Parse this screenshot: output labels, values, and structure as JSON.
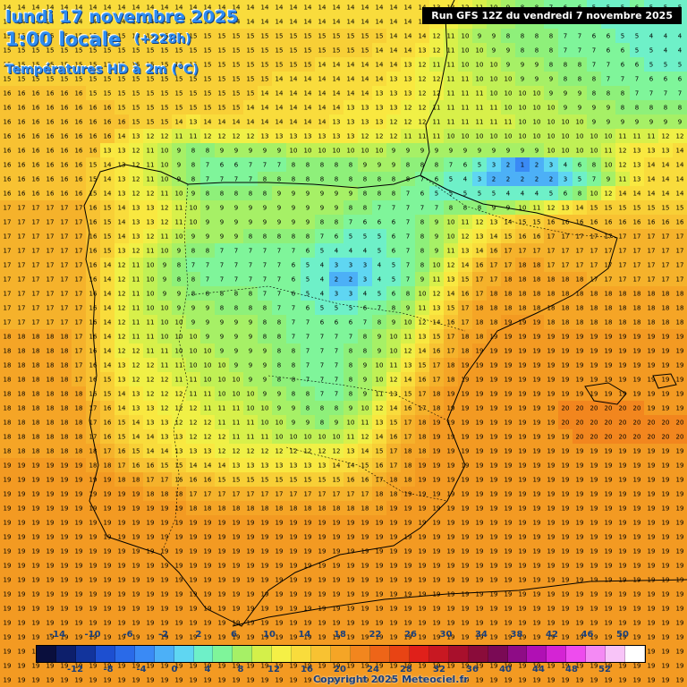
{
  "header": {
    "date": "lundi 17 novembre 2025",
    "time": "1:00 locale",
    "offset": "(+228h)",
    "variable": "Températures HD à 2m (°C)"
  },
  "run_info": "Run GFS 12Z du vendredi 7 novembre 2025",
  "credit": "Copyright 2025 Meteociel.fr",
  "legend": {
    "labels_top": [
      "-14",
      "-10",
      "-6",
      "-2",
      "2",
      "6",
      "10",
      "14",
      "18",
      "22",
      "26",
      "30",
      "34",
      "38",
      "42",
      "46",
      "50"
    ],
    "labels_bottom": [
      "-12",
      "-8",
      "-4",
      "0",
      "4",
      "8",
      "12",
      "16",
      "20",
      "24",
      "28",
      "32",
      "36",
      "40",
      "44",
      "48",
      "52"
    ],
    "colors": [
      "#0a0f3d",
      "#0d1f6b",
      "#12349c",
      "#1d4fd0",
      "#2a6ae8",
      "#3a8af5",
      "#4cb0f7",
      "#5fd6f2",
      "#6ef0c8",
      "#7ff59a",
      "#a6f066",
      "#d4f04a",
      "#f5f046",
      "#f9dc3c",
      "#f8c232",
      "#f5a526",
      "#f2861e",
      "#ee6518",
      "#e84414",
      "#e0201a",
      "#c81822",
      "#a8102c",
      "#8a0c3a",
      "#7a0a55",
      "#8e0c86",
      "#b010b4",
      "#d424d4",
      "#ee4cee",
      "#f48af4",
      "#f8c4f8",
      "#ffffff"
    ]
  },
  "map_grid": {
    "rows": [
      "14 14 14 14 14 14 14 14 14 14 14 14 14 14 14 14 14 14 14 14 14 14 14 14 14 14 14 14 14 14 13 13 12 11 10 9 8 8 7 6 6 5 5 5 6 5 5 5",
      "14 14 14 14 14 14 14 14 14 14 14 14 14 14 14 14 14 14 14 14 14 14 14 14 14 14 14 14 14 14 13 12 11 10 9 9 8 8 7 7 6 6 5 5 5 5 5 5",
      "15 15 15 15 15 15 15 15 15 15 15 15 15 15 15 15 15 15 15 15 15 15 15 15 15 15 15 14 14 14 12 11 10 9 9 8 8 8 8 7 7 6 6 5 5 4 4 4",
      "15 15 15 15 15 15 15 15 15 15 15 15 15 15 15 15 15 15 15 15 15 15 15 15 15 15 14 14 14 13 12 11 10 10 9 9 8 8 8 7 7 7 6 6 5 5 4 4",
      "15 15 15 15 15 15 15 15 15 15 15 15 15 15 15 15 15 15 15 15 15 15 14 14 14 14 14 14 13 12 11 11 10 10 10 9 9 9 8 8 8 7 7 6 6 5 5 5",
      "15 15 15 15 15 15 15 15 15 15 15 15 15 15 15 15 15 15 15 14 14 14 14 14 14 14 14 13 13 12 12 11 11 10 10 10 9 9 9 8 8 8 7 7 7 6 6 6",
      "16 16 16 16 16 16 15 15 15 15 15 15 15 15 15 15 15 15 14 14 14 14 14 14 14 14 13 13 13 12 12 11 11 11 10 10 10 10 9 9 9 8 8 8 7 7 7 7",
      "16 16 16 16 16 16 16 16 15 15 15 15 15 15 15 15 15 14 14 14 14 14 14 14 13 13 13 13 12 12 11 11 11 11 11 10 10 10 10 9 9 9 9 8 8 8 8 8",
      "16 16 16 16 16 16 16 16 16 15 15 15 14 13 14 14 14 14 14 14 14 14 14 13 13 13 13 12 12 12 11 11 11 11 11 11 10 10 10 10 10 9 9 9 9 9 9 9",
      "16 16 16 16 16 16 16 16 14 13 12 12 11 11 12 12 12 12 13 13 13 13 13 13 13 12 12 12 11 11 11 10 10 10 10 10 10 10 10 10 10 10 10 11 11 11 12 12",
      "16 16 16 16 16 16 16 13 13 12 11 10 9 8 8 9 9 9 9 9 10 10 10 10 10 10 10 9 9 9 9 9 9 9 9 9 9 9 10 10 10 10 11 12 13 13 13 14",
      "16 16 16 16 16 16 15 14 13 12 11 10 9 8 7 6 6 7 7 7 8 8 8 8 8 9 9 9 8 8 8 7 6 5 3 2 1 2 3 4 6 8 10 12 13 14 14 14",
      "16 16 16 16 16 16 15 14 13 12 11 10 9 8 7 7 7 7 8 8 8 8 8 8 8 8 8 8 8 7 6 5 4 3 2 2 2 2 2 3 5 7 9 11 13 14 14 14",
      "16 16 16 16 16 16 15 14 13 12 12 11 10 9 8 8 8 8 8 9 9 9 9 9 9 8 8 8 7 6 5 5 5 5 5 4 4 4 5 6 8 10 12 14 14 14 14 14",
      "17 17 17 17 17 17 16 15 14 13 13 12 11 10 9 9 9 9 9 9 9 9 9 9 8 8 7 7 7 7 7 8 8 8 9 9 10 11 12 13 14 15 15 15 15 15 15 15",
      "17 17 17 17 17 17 16 15 14 13 13 12 11 10 9 9 9 9 9 9 9 9 8 8 7 6 6 6 7 8 9 10 11 12 13 14 15 15 16 16 16 16 16 16 16 16 16 16",
      "17 17 17 17 17 17 16 15 14 13 12 11 10 9 9 9 9 8 8 8 8 8 7 6 5 5 5 6 7 8 9 10 12 13 14 15 16 16 17 17 17 17 17 17 17 17 17 17",
      "17 17 17 17 17 17 16 15 13 12 11 10 9 8 8 7 7 7 7 7 7 6 5 4 4 4 5 6 7 8 9 11 13 14 16 17 17 17 17 17 17 17 17 17 17 17 17 17",
      "17 17 17 17 17 17 16 14 12 11 10 9 8 7 7 7 7 7 7 7 6 5 4 3 3 3 4 5 7 8 10 12 14 16 17 17 18 18 17 17 17 17 17 17 17 17 17 17",
      "17 17 17 17 17 17 16 14 12 11 10 9 8 8 7 7 7 7 7 7 6 5 4 2 2 3 4 5 7 9 11 13 15 17 17 18 18 18 18 18 18 17 17 17 17 17 17 17",
      "17 17 17 17 17 17 16 14 12 11 10 9 9 8 8 8 8 8 7 7 6 5 4 3 3 4 5 6 8 10 12 14 16 17 18 18 18 18 18 18 18 18 18 18 18 18 18 18",
      "17 17 17 17 17 17 16 14 12 11 10 10 9 9 9 8 8 8 8 7 7 6 5 5 5 6 7 8 9 11 13 15 17 18 18 18 18 18 18 18 18 18 18 18 18 18 18 18",
      "17 17 17 17 17 17 16 14 12 11 11 10 10 9 9 9 9 9 8 8 7 7 6 6 6 7 8 9 10 12 14 16 17 18 18 19 19 19 18 18 18 18 18 18 18 18 18 18",
      "18 18 18 18 18 17 16 14 12 11 11 10 10 10 9 9 9 9 8 8 7 7 7 7 7 8 9 10 11 13 15 17 18 18 19 19 19 19 19 19 19 19 19 19 19 19 19 19",
      "18 18 18 18 18 17 16 14 12 12 11 11 10 10 10 9 9 9 9 8 8 7 7 7 8 8 9 10 12 14 16 17 18 19 19 19 19 19 19 19 19 19 19 19 19 19 19 19",
      "18 18 18 18 18 17 16 14 13 12 12 11 11 10 10 10 9 9 9 8 8 7 7 7 8 9 10 11 13 15 17 18 19 19 19 19 19 19 19 19 19 19 19 19 19 19 19 19",
      "18 18 18 18 18 17 16 15 13 12 12 12 11 11 10 10 10 9 9 8 8 7 7 7 8 9 10 12 14 16 17 18 19 19 19 19 19 19 19 19 19 19 19 19 19 19 19 19",
      "18 18 18 18 18 18 16 15 14 13 12 12 12 11 11 10 10 10 9 9 8 8 7 7 8 9 11 13 15 17 18 19 19 19 19 19 19 19 19 19 19 19 19 19 19 19 19 19",
      "18 18 18 18 18 18 17 16 14 13 13 12 12 12 11 11 11 10 10 9 9 8 8 8 9 10 12 14 16 17 18 19 19 19 19 19 19 19 19 20 20 20 20 20 20 19 19 19",
      "18 18 18 18 18 18 17 16 15 14 13 13 12 12 12 11 11 11 10 10 9 9 8 9 10 11 13 15 17 18 19 19 19 19 19 19 19 19 19 20 20 20 20 20 20 20 20 20",
      "18 18 18 18 18 18 17 16 15 14 14 13 13 12 12 12 11 11 11 10 10 10 10 10 11 12 14 16 17 18 19 19 19 19 19 19 19 19 19 19 20 20 20 20 20 20 20 20",
      "18 18 18 18 18 18 18 17 16 15 14 14 13 13 13 12 12 12 12 12 12 12 12 12 13 14 15 17 18 18 19 19 19 19 19 19 19 19 19 19 19 19 19 19 19 19 19 19",
      "19 19 19 19 19 19 18 18 17 16 16 15 15 14 14 14 13 13 13 13 13 13 13 14 14 15 16 17 18 19 19 19 19 19 19 19 19 19 19 19 19 19 19 19 19 19 19 19",
      "19 19 19 19 19 19 19 19 18 18 17 17 16 16 16 15 15 15 15 15 15 15 15 15 16 16 17 18 18 19 19 19 19 19 19 19 19 19 19 19 19 19 19 19 19 19 19 19",
      "19 19 19 19 19 19 19 19 19 19 18 18 18 17 17 17 17 17 17 17 17 17 17 17 17 17 18 18 19 19 19 19 19 19 19 19 19 19 19 19 19 19 19 19 19 19 19 19",
      "19 19 19 19 19 19 19 19 19 19 19 19 19 18 18 18 18 18 18 18 18 18 18 18 18 18 18 19 19 19 19 19 19 19 19 19 19 19 19 19 19 19 19 19 19 19 19 19",
      "19 19 19 19 19 19 19 19 19 19 19 19 19 19 19 19 19 19 19 19 19 19 19 19 19 19 19 19 19 19 19 19 19 19 19 19 19 19 19 19 19 19 19 19 19 19 19 19",
      "19 19 19 19 19 19 19 19 19 19 19 19 19 19 19 19 19 19 19 19 19 19 19 19 19 19 19 19 19 19 19 19 19 19 19 19 19 19 19 19 19 19 19 19 19 19 19 19",
      "19 19 19 19 19 19 19 19 19 19 19 19 19 19 19 19 19 19 19 19 19 19 19 19 19 19 19 19 19 19 19 19 19 19 19 19 19 19 19 19 19 19 19 19 19 19 19 19",
      "19 19 19 19 19 19 19 19 19 19 19 19 19 19 19 19 19 19 19 19 19 19 19 19 19 19 19 19 19 19 19 19 19 19 19 19 19 19 19 19 19 19 19 19 19 19 19 19",
      "19 19 19 19 19 19 19 19 19 19 19 19 19 19 19 19 19 19 19 19 19 19 19 19 19 19 19 19 19 19 19 19 19 19 19 19 19 19 19 19 19 19 19 19 19 19 19 19",
      "19 19 19 19 19 19 19 19 19 19 19 19 19 19 19 19 19 19 19 19 19 19 19 19 19 19 19 19 19 19 19 19 19 19 19 19 19 19 19 19 19 19 19 19 19 19 19 19",
      "19 19 19 19 19 19 19 19 19 19 19 19 19 19 19 19 19 19 19 19 19 19 19 19 19 19 19 19 19 19 19 19 19 19 19 19 19 19 19 19 19 19 19 19 19 19 19 19",
      "19 19 19 19 19 19 19 19 19 19 19 19 19 19 19 19 19 19 19 19 19 19 19 19 19 19 19 19 19 19 19 19 19 19 19 19 19 19 19 19 19 19 19 19 19 19 19 19",
      "19 19 19 19 19 19 19 19 19 19 19 19 19 19 19 19 19 19 19 19 19 19 19 19 19 19 19 19 19 19 19 19 19 19 19 19 19 19 19 19 19 19 19 19 19 19 19 19",
      "19 19 19 19 19 19 19 19 19 19 19 19 19 19 19 19 19 19 19 19 19 19 19 19 19 19 19 19 19 19 19 19 19 19 19 19 19 19 19 19 19 19 19 19 19 19 19 19",
      "19 19 19 19 19 19 19 19 19 19 19 19 19 19 19 19 19 19 19 19 19 19 19 19 19 19 19 19 19 19 19 19 19 19 19 19 19 19 19 19 19 19 19 19 19 19 19 19",
      "19 19 19 19 19 19 19 19 19 19 19 19 19 19 19 19 19 19 19 19 19 19 19 19 19 19 19 19 19 19 19 19 19 19 19 19 19 19 19 19 19 19 19 19 19 19 19 19"
    ]
  }
}
